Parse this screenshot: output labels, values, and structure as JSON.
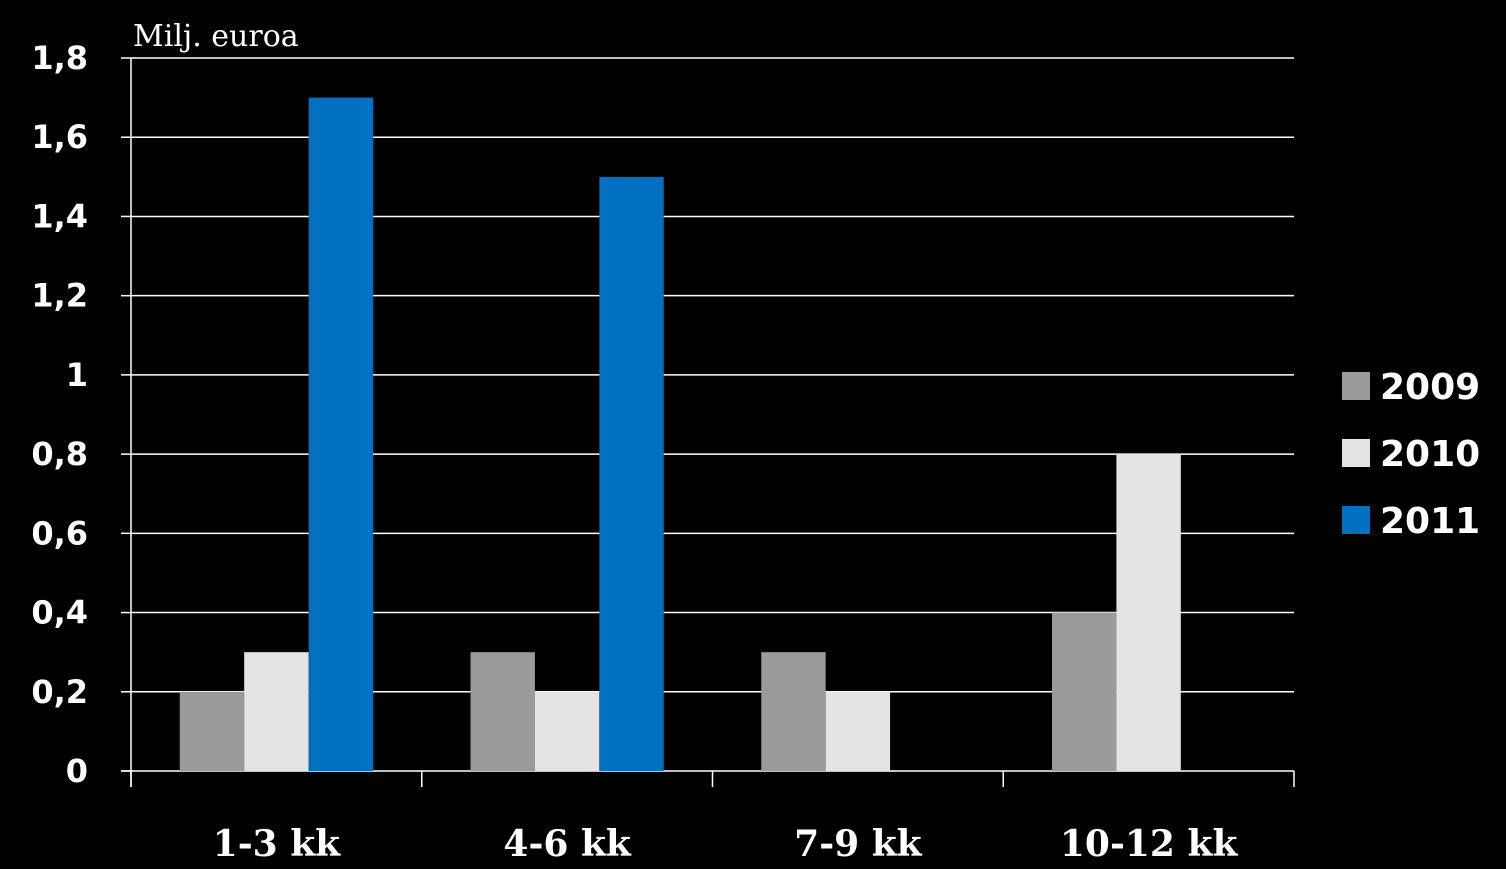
{
  "chart_data": {
    "type": "bar",
    "title": "",
    "unit_label": "Milj. euroa",
    "xlabel": "",
    "ylabel": "",
    "categories": [
      "1-3 kk",
      "4-6 kk",
      "7-9 kk",
      "10-12 kk"
    ],
    "series": [
      {
        "name": "2009",
        "color": "#9a9a9a",
        "values": [
          0.2,
          0.3,
          0.3,
          0.4
        ]
      },
      {
        "name": "2010",
        "color": "#e4e4e4",
        "values": [
          0.3,
          0.2,
          0.2,
          0.8
        ]
      },
      {
        "name": "2011",
        "color": "#0070c0",
        "values": [
          1.7,
          1.5,
          null,
          null
        ]
      }
    ],
    "ylim": [
      0,
      1.8
    ],
    "yticks": [
      0,
      0.2,
      0.4,
      0.6,
      0.8,
      1,
      1.2,
      1.4,
      1.6,
      1.8
    ],
    "ytick_labels": [
      "0",
      "0,2",
      "0,4",
      "0,6",
      "0,8",
      "1",
      "1,2",
      "1,4",
      "1,6",
      "1,8"
    ],
    "grid": true,
    "legend_position": "right",
    "background": "#000000",
    "gridline_color": "#ffffff"
  }
}
